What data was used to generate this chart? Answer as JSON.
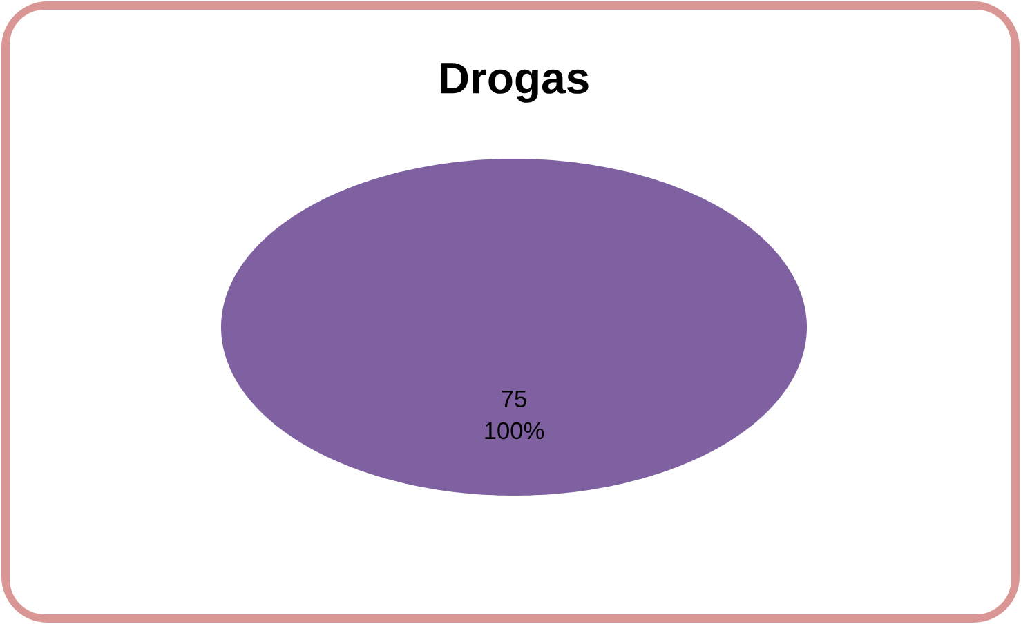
{
  "chart_data": {
    "type": "pie",
    "title": "Drogas",
    "categories": [
      null
    ],
    "values": [
      75
    ],
    "colors": [
      "#7f60a0"
    ],
    "data_labels": true,
    "annotations": [
      "100%"
    ]
  }
}
